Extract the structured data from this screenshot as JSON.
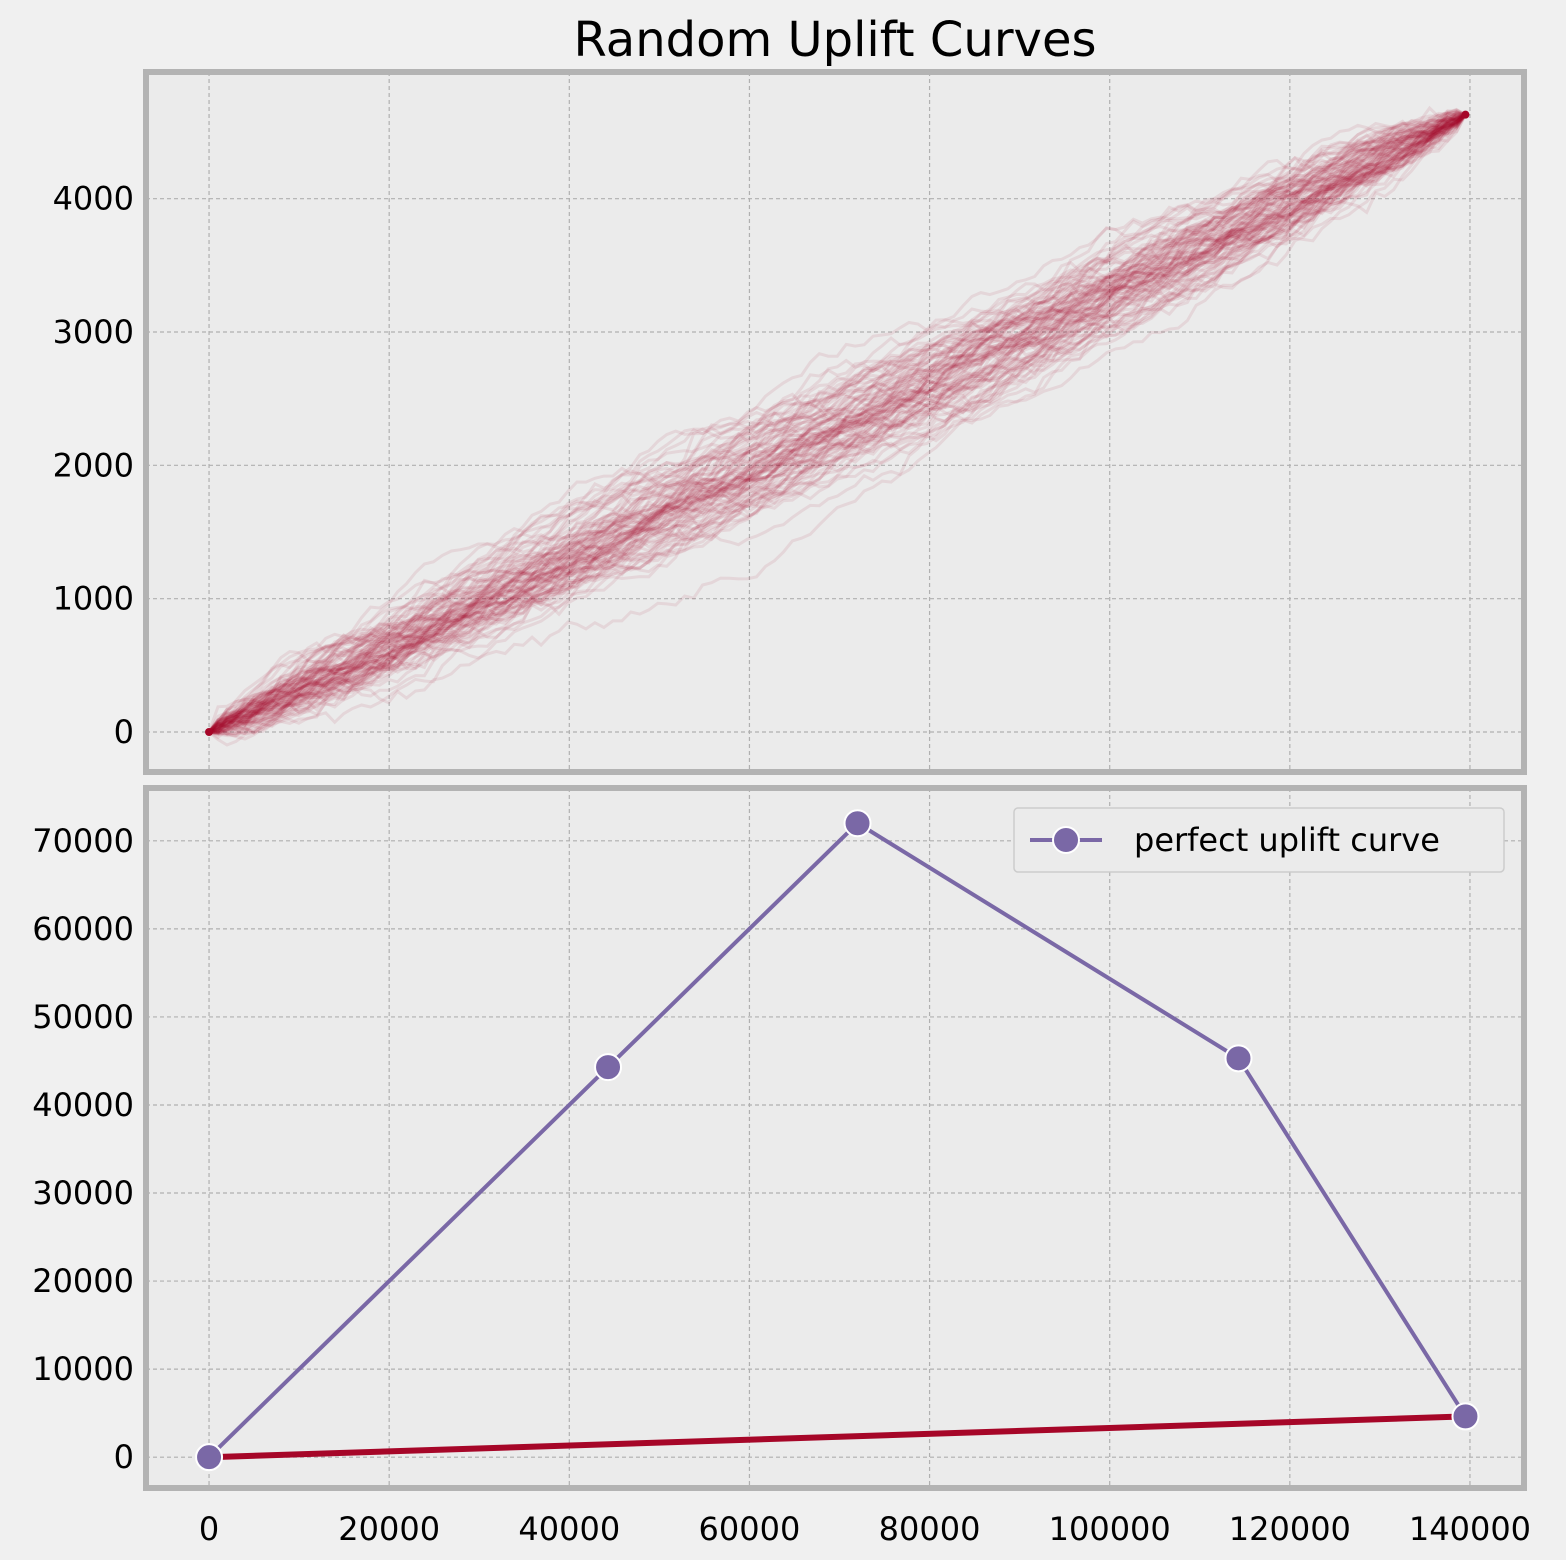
{
  "figure": {
    "title": "Random Uplift Curves"
  },
  "colors": {
    "background": "#f0f0f0",
    "axes_face": "#ebebeb",
    "spine": "#b3b3b3",
    "grid": "#b0b0b0",
    "random_curves": "#a60628",
    "perfect_curve": "#7a68a6"
  },
  "chart_data": [
    {
      "type": "line",
      "title": "Random Uplift Curves",
      "xlabel": "",
      "ylabel": "",
      "xlim": [
        -7000,
        146000
      ],
      "ylim": [
        -300,
        4950
      ],
      "xticks": [
        0,
        20000,
        40000,
        60000,
        80000,
        100000,
        120000,
        140000
      ],
      "yticks": [
        0,
        1000,
        2000,
        3000,
        4000
      ],
      "grid": true,
      "series": [
        {
          "description": "many semi-transparent random uplift curves, all from (0,0) to (139500,4630), spread about ±250",
          "x": [
            0,
            20000,
            40000,
            60000,
            80000,
            100000,
            120000,
            139500
          ],
          "y": [
            0,
            660,
            1330,
            2000,
            2660,
            3320,
            3980,
            4630
          ]
        }
      ]
    },
    {
      "type": "line",
      "xlabel": "",
      "ylabel": "",
      "xlim": [
        -7000,
        146000
      ],
      "ylim": [
        -3500,
        76000
      ],
      "xticks": [
        0,
        20000,
        40000,
        60000,
        80000,
        100000,
        120000,
        140000
      ],
      "xtick_labels": [
        "0",
        "20000",
        "40000",
        "60000",
        "80000",
        "100000",
        "120000",
        "140000"
      ],
      "yticks": [
        0,
        10000,
        20000,
        30000,
        40000,
        50000,
        60000,
        70000
      ],
      "grid": true,
      "legend": {
        "placement": "top-right",
        "entries": [
          "perfect uplift curve"
        ]
      },
      "series": [
        {
          "name": "perfect uplift curve",
          "x": [
            0,
            44300,
            72000,
            114300,
            139500
          ],
          "y": [
            0,
            44300,
            72000,
            45300,
            4630
          ]
        },
        {
          "x": [
            0,
            139500
          ],
          "y": [
            0,
            4630
          ]
        }
      ]
    }
  ]
}
